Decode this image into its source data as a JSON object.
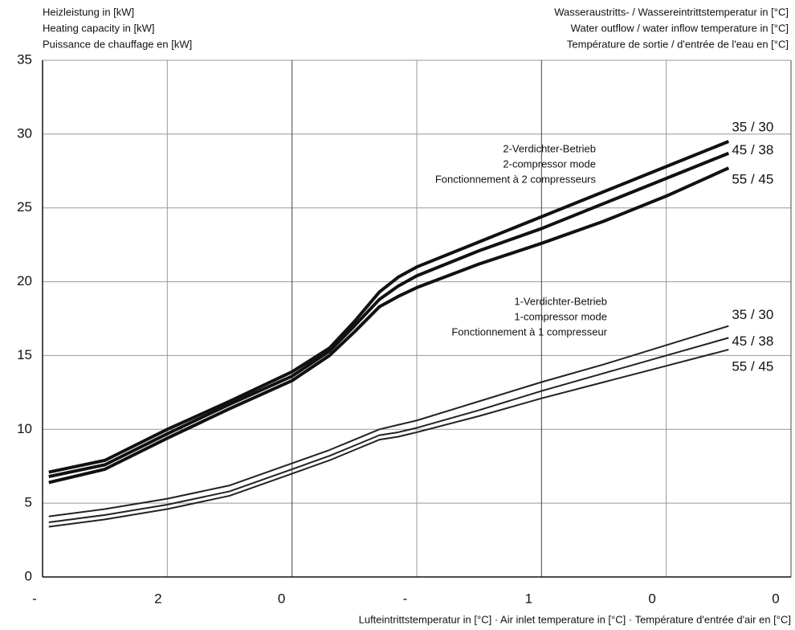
{
  "chart_data": {
    "type": "line",
    "y_title": [
      "Heizleistung in [kW]",
      "Heating capacity in [kW]",
      "Puissance de chauffage en [kW]"
    ],
    "legend_title": [
      "Wasseraustritts- / Wassereintrittstemperatur in [°C]",
      "Water outflow / water inflow temperature in [°C]",
      "Température de sortie / d'entrée de l'eau en [°C]"
    ],
    "x_label": "Lufteintrittstemperatur in [°C] · Air inlet temperature in [°C] · Température d'entrée d'air en [°C]",
    "annotations": [
      [
        "2-Verdichter-Betrieb",
        "2-compressor mode",
        "Fonctionnement à 2 compresseurs"
      ],
      [
        "1-Verdichter-Betrieb",
        "1-compressor mode",
        "Fonctionnement à 1 compresseur"
      ]
    ],
    "x": [
      -19.5,
      -15,
      -10,
      -5,
      0,
      3,
      5,
      7,
      8.5,
      10,
      15,
      20,
      25,
      30,
      35
    ],
    "series": [
      {
        "name": "35 / 30",
        "color": "#111111",
        "values": [
          7.1,
          7.9,
          10.0,
          11.9,
          13.9,
          15.5,
          17.3,
          19.3,
          20.3,
          21.0,
          22.7,
          24.4,
          26.1,
          27.8,
          29.5
        ]
      },
      {
        "name": "45 / 38",
        "color": "#111111",
        "values": [
          6.8,
          7.6,
          9.7,
          11.7,
          13.6,
          15.3,
          17.0,
          18.8,
          19.7,
          20.4,
          22.1,
          23.6,
          25.3,
          27.0,
          28.7
        ]
      },
      {
        "name": "55 / 45",
        "color": "#111111",
        "values": [
          6.4,
          7.3,
          9.4,
          11.4,
          13.3,
          15.0,
          16.6,
          18.3,
          19.0,
          19.6,
          21.2,
          22.6,
          24.1,
          25.8,
          27.7
        ]
      },
      {
        "name": "35 / 30",
        "color": "#222222",
        "values": [
          4.1,
          4.6,
          5.3,
          6.2,
          7.7,
          8.6,
          9.3,
          10.0,
          10.3,
          10.6,
          11.9,
          13.2,
          14.4,
          15.7,
          17.0
        ]
      },
      {
        "name": "45 / 38",
        "color": "#222222",
        "values": [
          3.7,
          4.2,
          4.9,
          5.8,
          7.3,
          8.2,
          8.9,
          9.6,
          9.8,
          10.1,
          11.3,
          12.6,
          13.8,
          15.0,
          16.2
        ]
      },
      {
        "name": "55 / 45",
        "color": "#222222",
        "values": [
          3.4,
          3.9,
          4.6,
          5.5,
          7.0,
          7.9,
          8.6,
          9.3,
          9.5,
          9.8,
          10.9,
          12.1,
          13.2,
          14.3,
          15.4
        ]
      }
    ],
    "xlim": [
      -20,
      40
    ],
    "xticks": [
      {
        "value": -20,
        "label": "-"
      },
      {
        "value": -10,
        "label": "2"
      },
      {
        "value": 0,
        "label": "0"
      },
      {
        "value": 10,
        "label": "-"
      },
      {
        "value": 20,
        "label": "1"
      },
      {
        "value": 30,
        "label": "0"
      },
      {
        "value": 40,
        "label": "0"
      }
    ],
    "ylim": [
      0,
      35
    ],
    "yticks": [
      0,
      5,
      10,
      15,
      20,
      25,
      30,
      35
    ],
    "grid": true
  }
}
